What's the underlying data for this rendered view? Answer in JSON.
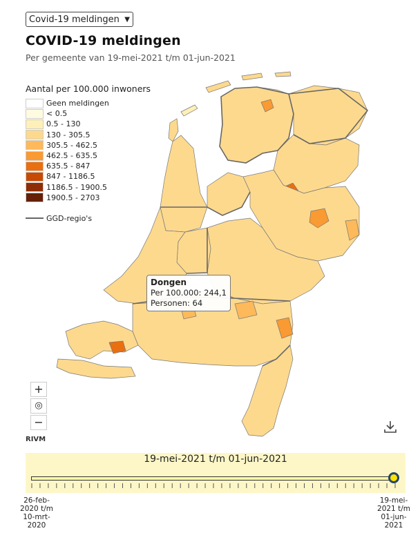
{
  "dropdown": {
    "value": "Covid-19 meldingen"
  },
  "header": {
    "title": "COVID-19 meldingen",
    "subtitle": "Per gemeente van 19-mei-2021 t/m 01-jun-2021"
  },
  "legend": {
    "title": "Aantal per 100.000 inwoners",
    "items": [
      {
        "label": "Geen meldingen",
        "color": "#ffffff"
      },
      {
        "label": "< 0.5",
        "color": "#fffbe0"
      },
      {
        "label": "0.5 - 130",
        "color": "#fff0b8"
      },
      {
        "label": "130 - 305.5",
        "color": "#fdd98e"
      },
      {
        "label": "305.5 - 462.5",
        "color": "#fdb95a"
      },
      {
        "label": "462.5 - 635.5",
        "color": "#f99a32"
      },
      {
        "label": "635.5 - 847",
        "color": "#e96f10"
      },
      {
        "label": "847 - 1186.5",
        "color": "#c74a05"
      },
      {
        "label": "1186.5 - 1900.5",
        "color": "#8f2e05"
      },
      {
        "label": "1900.5 - 2703",
        "color": "#652007"
      }
    ],
    "ggd_label": "GGD-regio's"
  },
  "tooltip": {
    "name": "Dongen",
    "per100k": "Per 100.000: 244,1",
    "persons": "Personen: 64"
  },
  "zoom": {
    "in": "+",
    "reset": "◎",
    "out": "−"
  },
  "attribution": "RIVM",
  "timeline": {
    "range_label": "19-mei-2021 t/m 01-jun-2021",
    "start_label": [
      "26-feb-",
      "2020 t/m",
      "10-mrt-",
      "2020"
    ],
    "end_label": [
      "19-mei-",
      "2021 t/m",
      "01-jun-",
      "2021"
    ],
    "position": 1.0
  },
  "icons": {
    "download": "download-icon"
  }
}
